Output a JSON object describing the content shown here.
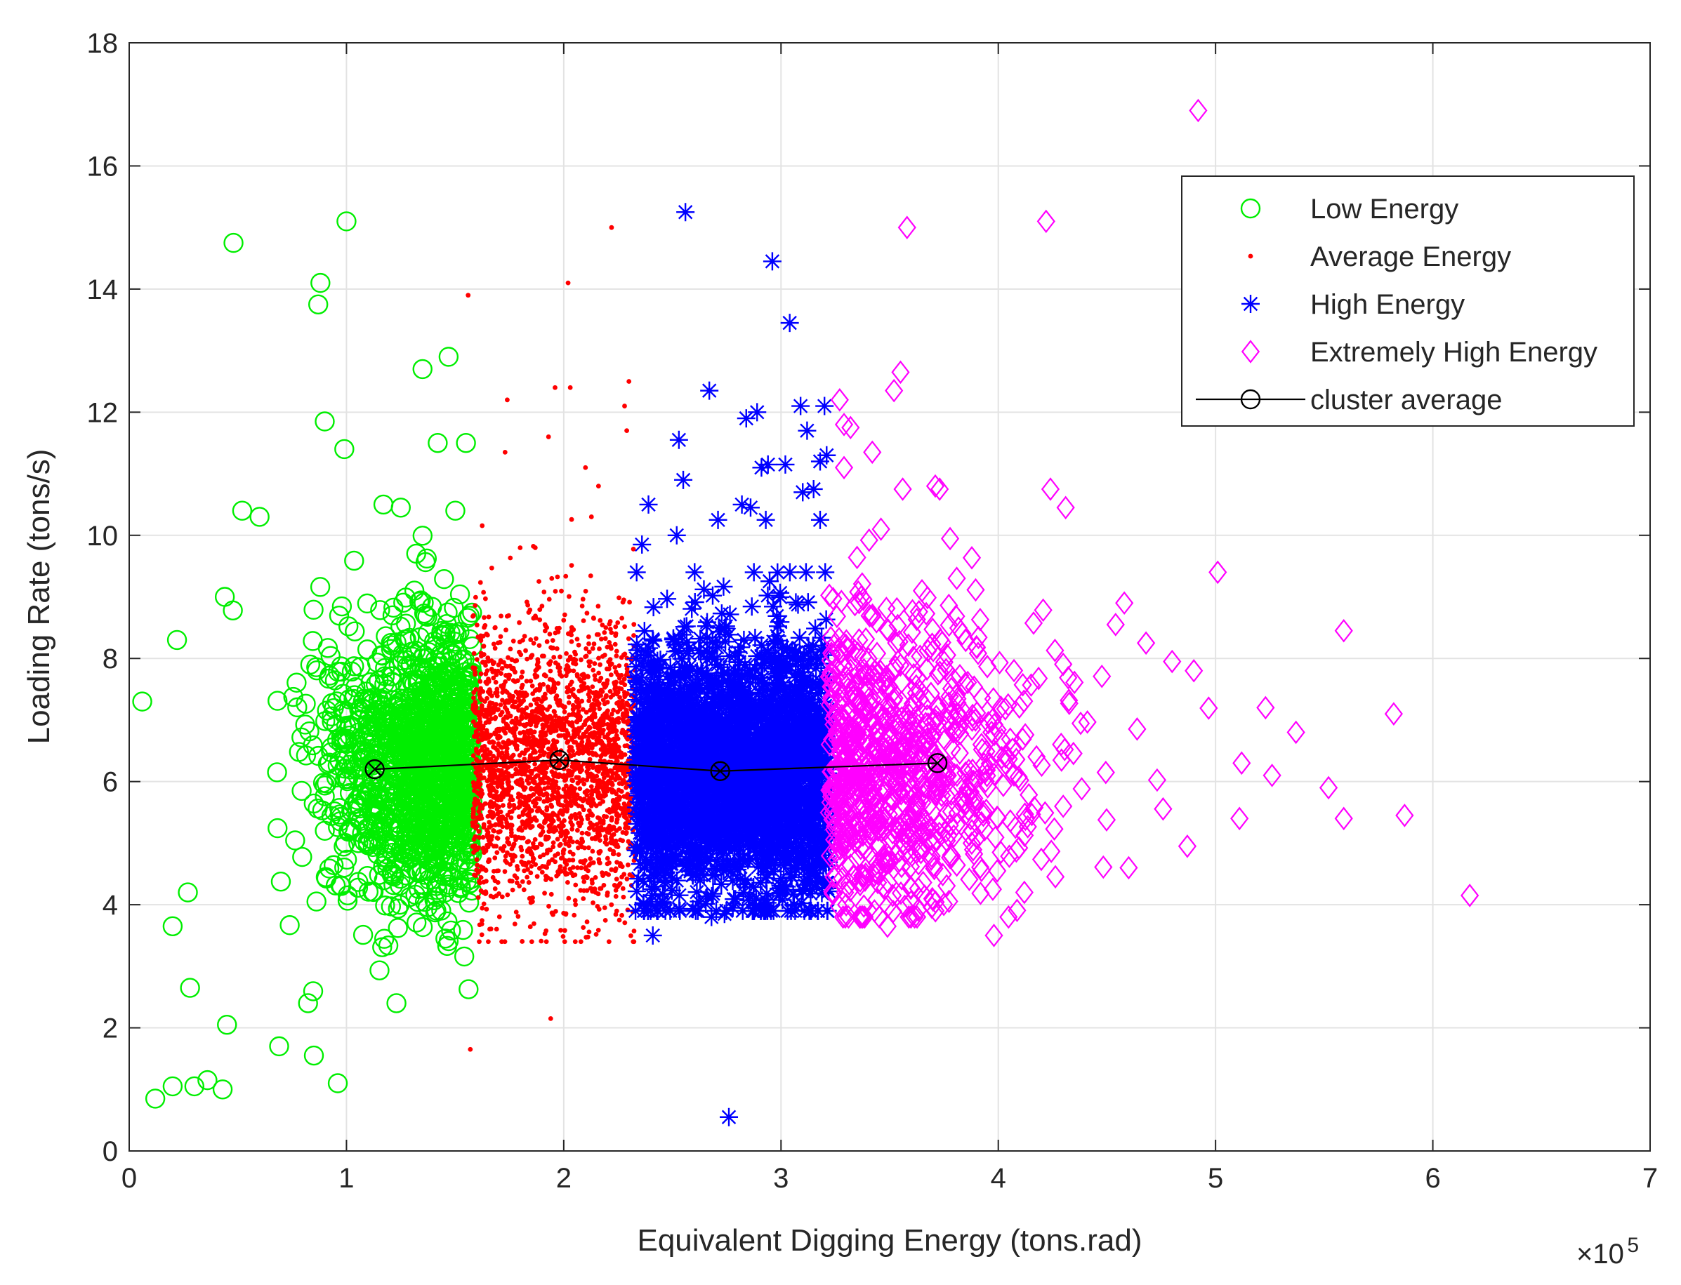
{
  "chart_data": {
    "type": "scatter",
    "title": "",
    "xlabel": "Equivalent Digging Energy (tons.rad)",
    "ylabel": "Loading Rate (tons/s)",
    "x_scale_note": "×10^5",
    "xlim": [
      0,
      7
    ],
    "ylim": [
      0,
      18
    ],
    "x_ticks": [
      0,
      1,
      2,
      3,
      4,
      5,
      6,
      7
    ],
    "y_ticks": [
      0,
      2,
      4,
      6,
      8,
      10,
      12,
      14,
      16,
      18
    ],
    "x_tick_labels": [
      "0",
      "1",
      "2",
      "3",
      "4",
      "5",
      "6",
      "7"
    ],
    "y_tick_labels": [
      "0",
      "2",
      "4",
      "6",
      "8",
      "10",
      "12",
      "14",
      "16",
      "18"
    ],
    "x_exponent_base": "×10",
    "x_exponent_power": "5",
    "grid": true,
    "legend_position": "top-right",
    "series": [
      {
        "name": "Low Energy",
        "marker": "circle",
        "color": "#00ee00",
        "x_range": [
          0.05,
          1.58
        ],
        "dense_center": [
          1.35,
          6.3
        ],
        "outliers": [
          [
            0.06,
            7.3
          ],
          [
            0.12,
            0.85
          ],
          [
            0.2,
            1.05
          ],
          [
            0.3,
            1.05
          ],
          [
            0.36,
            1.15
          ],
          [
            0.43,
            1.0
          ],
          [
            0.48,
            14.75
          ],
          [
            1.0,
            15.1
          ],
          [
            0.88,
            14.1
          ],
          [
            0.87,
            13.75
          ],
          [
            0.9,
            11.85
          ],
          [
            0.99,
            11.4
          ],
          [
            1.35,
            12.7
          ],
          [
            1.47,
            12.9
          ],
          [
            1.42,
            11.5
          ],
          [
            1.55,
            11.5
          ],
          [
            0.96,
            1.1
          ],
          [
            0.85,
            1.55
          ],
          [
            0.69,
            1.7
          ],
          [
            0.2,
            3.65
          ],
          [
            0.28,
            2.65
          ],
          [
            1.23,
            2.4
          ],
          [
            0.22,
            8.3
          ],
          [
            0.52,
            10.4
          ],
          [
            0.6,
            10.3
          ],
          [
            1.17,
            10.5
          ],
          [
            1.25,
            10.45
          ],
          [
            0.44,
            9.0
          ],
          [
            0.27,
            4.2
          ],
          [
            0.45,
            2.05
          ]
        ]
      },
      {
        "name": "Average Energy",
        "marker": "dot",
        "color": "#ff0000",
        "x_range": [
          1.58,
          2.33
        ],
        "dense_center": [
          1.95,
          6.3
        ],
        "outliers": [
          [
            2.22,
            15.0
          ],
          [
            1.56,
            13.9
          ],
          [
            2.02,
            14.1
          ],
          [
            1.96,
            12.4
          ],
          [
            2.03,
            12.4
          ],
          [
            2.3,
            12.5
          ],
          [
            1.74,
            12.2
          ],
          [
            2.28,
            12.1
          ],
          [
            1.93,
            11.6
          ],
          [
            2.29,
            11.7
          ],
          [
            1.73,
            11.35
          ],
          [
            2.1,
            11.1
          ],
          [
            2.16,
            10.8
          ],
          [
            1.94,
            2.15
          ],
          [
            1.57,
            1.65
          ]
        ]
      },
      {
        "name": "High Energy",
        "marker": "asterisk",
        "color": "#0000ff",
        "x_range": [
          2.33,
          3.22
        ],
        "dense_center": [
          2.75,
          6.2
        ],
        "outliers": [
          [
            2.56,
            15.25
          ],
          [
            2.96,
            14.45
          ],
          [
            3.04,
            13.45
          ],
          [
            2.67,
            12.35
          ],
          [
            3.09,
            12.1
          ],
          [
            3.2,
            12.1
          ],
          [
            2.89,
            12.0
          ],
          [
            2.84,
            11.9
          ],
          [
            3.12,
            11.7
          ],
          [
            2.53,
            11.55
          ],
          [
            2.91,
            11.1
          ],
          [
            2.94,
            11.15
          ],
          [
            3.02,
            11.15
          ],
          [
            3.18,
            11.2
          ],
          [
            3.21,
            11.3
          ],
          [
            2.55,
            10.9
          ],
          [
            3.1,
            10.7
          ],
          [
            3.15,
            10.75
          ],
          [
            2.39,
            10.5
          ],
          [
            2.82,
            10.5
          ],
          [
            2.86,
            10.45
          ],
          [
            3.18,
            10.25
          ],
          [
            2.71,
            10.25
          ],
          [
            2.93,
            10.25
          ],
          [
            2.52,
            10.0
          ],
          [
            2.36,
            9.85
          ],
          [
            2.41,
            3.5
          ],
          [
            2.74,
            3.85
          ],
          [
            2.68,
            3.8
          ],
          [
            3.03,
            3.9
          ],
          [
            3.06,
            4.0
          ],
          [
            2.76,
            0.55
          ]
        ]
      },
      {
        "name": "Extremely High Energy",
        "marker": "diamond",
        "color": "#ff00ff",
        "x_range": [
          3.22,
          6.2
        ],
        "dense_center": [
          3.6,
          6.3
        ],
        "outliers": [
          [
            4.92,
            16.9
          ],
          [
            4.22,
            15.1
          ],
          [
            3.58,
            15.0
          ],
          [
            3.55,
            12.65
          ],
          [
            3.52,
            12.35
          ],
          [
            3.27,
            12.2
          ],
          [
            3.29,
            11.8
          ],
          [
            3.32,
            11.75
          ],
          [
            3.42,
            11.35
          ],
          [
            3.29,
            11.1
          ],
          [
            3.56,
            10.75
          ],
          [
            3.71,
            10.8
          ],
          [
            3.73,
            10.75
          ],
          [
            4.24,
            10.75
          ],
          [
            4.31,
            10.45
          ],
          [
            3.46,
            10.1
          ],
          [
            5.01,
            9.4
          ],
          [
            5.59,
            8.45
          ],
          [
            5.82,
            7.1
          ],
          [
            5.87,
            5.45
          ],
          [
            5.59,
            5.4
          ],
          [
            5.52,
            5.9
          ],
          [
            5.37,
            6.8
          ],
          [
            5.23,
            7.2
          ],
          [
            5.26,
            6.1
          ],
          [
            5.12,
            6.3
          ],
          [
            5.11,
            5.4
          ],
          [
            6.17,
            4.15
          ],
          [
            3.98,
            3.5
          ],
          [
            3.49,
            3.65
          ],
          [
            3.3,
            4.0
          ],
          [
            3.43,
            3.9
          ],
          [
            4.12,
            4.2
          ],
          [
            4.6,
            4.6
          ],
          [
            4.87,
            4.95
          ],
          [
            4.54,
            8.55
          ],
          [
            4.58,
            8.9
          ],
          [
            4.68,
            8.25
          ],
          [
            4.9,
            7.8
          ],
          [
            4.8,
            7.95
          ]
        ]
      }
    ],
    "cluster_average": {
      "name": "cluster average",
      "marker": "circle-x",
      "color": "#000000",
      "points": [
        [
          1.13,
          6.2
        ],
        [
          1.98,
          6.35
        ],
        [
          2.72,
          6.17
        ],
        [
          3.72,
          6.3
        ]
      ]
    }
  }
}
